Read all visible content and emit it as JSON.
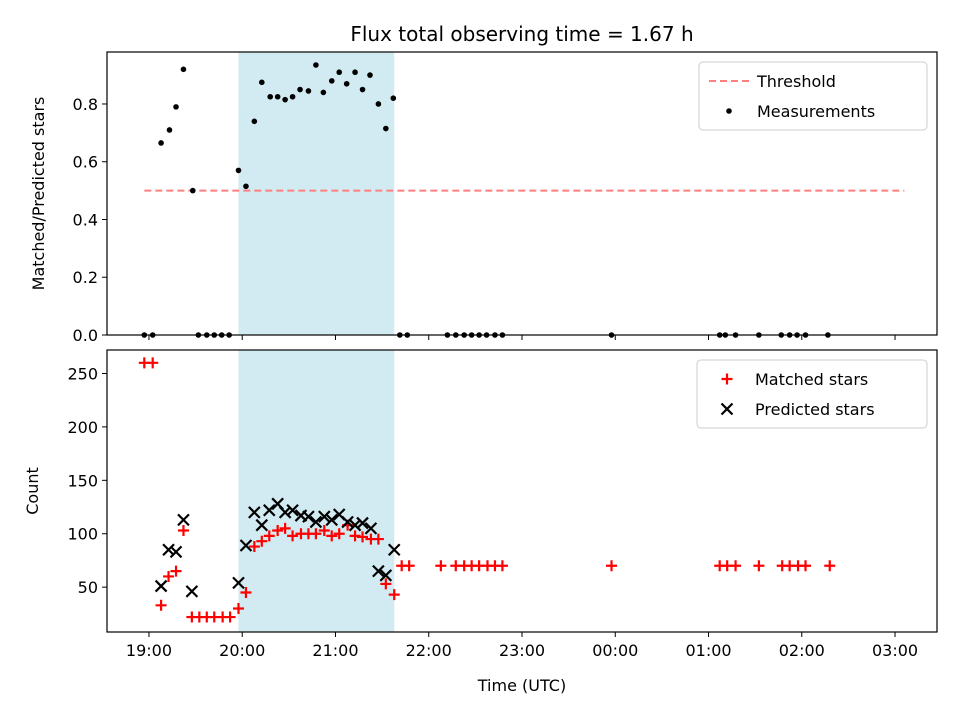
{
  "figure_title": "Flux total observing time = 1.67 h",
  "colors": {
    "shade": "#add8e6",
    "threshold": "#ff7f7f",
    "measurement": "#000000",
    "matched": "#ff0000",
    "predicted": "#000000"
  },
  "chart_data": [
    {
      "type": "scatter",
      "panel": "top",
      "title": "Flux total observing time = 1.67 h",
      "xlabel": "",
      "ylabel": "Matched/Predicted stars",
      "x_unit": "hours after 19:00 UTC",
      "xlim": [
        -0.45,
        8.45
      ],
      "ylim": [
        0,
        0.98
      ],
      "yticks": [
        0.0,
        0.2,
        0.4,
        0.6,
        0.8
      ],
      "ytick_labels": [
        "0.0",
        "0.2",
        "0.4",
        "0.6",
        "0.8"
      ],
      "xticks": [
        0,
        1,
        2,
        3,
        4,
        5,
        6,
        7,
        8
      ],
      "legend_position": "top-right",
      "shaded_interval": [
        0.96,
        2.63
      ],
      "threshold": {
        "name": "Threshold",
        "y": 0.5,
        "x_range": [
          -0.05,
          8.1
        ],
        "style": "dashed"
      },
      "series": [
        {
          "name": "Measurements",
          "marker": "dot",
          "x": [
            -0.05,
            0.04,
            0.13,
            0.22,
            0.29,
            0.37,
            0.47,
            0.53,
            0.62,
            0.7,
            0.78,
            0.86,
            0.96,
            1.04,
            1.13,
            1.21,
            1.3,
            1.38,
            1.46,
            1.54,
            1.62,
            1.71,
            1.79,
            1.87,
            1.96,
            2.04,
            2.12,
            2.21,
            2.29,
            2.37,
            2.46,
            2.54,
            2.62,
            2.69,
            2.77,
            3.2,
            3.29,
            3.38,
            3.46,
            3.54,
            3.62,
            3.71,
            3.79,
            4.96,
            6.12,
            6.18,
            6.29,
            6.54,
            6.78,
            6.87,
            6.95,
            7.04,
            7.28
          ],
          "y": [
            0,
            0,
            0.665,
            0.71,
            0.79,
            0.92,
            0.5,
            0,
            0,
            0,
            0,
            0,
            0.57,
            0.515,
            0.74,
            0.875,
            0.825,
            0.825,
            0.815,
            0.825,
            0.85,
            0.845,
            0.935,
            0.84,
            0.88,
            0.91,
            0.87,
            0.91,
            0.85,
            0.9,
            0.8,
            0.715,
            0.82,
            0,
            0,
            0,
            0,
            0,
            0,
            0,
            0,
            0,
            0,
            0,
            0,
            0,
            0,
            0,
            0,
            0,
            0,
            0,
            0
          ]
        }
      ]
    },
    {
      "type": "scatter",
      "panel": "bottom",
      "xlabel": "Time (UTC)",
      "ylabel": "Count",
      "x_unit": "hours after 19:00 UTC",
      "xlim": [
        -0.45,
        8.45
      ],
      "ylim": [
        8,
        272
      ],
      "yticks": [
        50,
        100,
        150,
        200,
        250
      ],
      "ytick_labels": [
        "50",
        "100",
        "150",
        "200",
        "250"
      ],
      "xticks": [
        0,
        1,
        2,
        3,
        4,
        5,
        6,
        7,
        8
      ],
      "xtick_labels": [
        "19:00",
        "20:00",
        "21:00",
        "22:00",
        "23:00",
        "00:00",
        "01:00",
        "02:00",
        "03:00"
      ],
      "legend_position": "top-right",
      "shaded_interval": [
        0.96,
        2.63
      ],
      "series": [
        {
          "name": "Matched stars",
          "marker": "plus",
          "x": [
            -0.05,
            0.04,
            0.13,
            0.21,
            0.29,
            0.37,
            0.46,
            0.54,
            0.62,
            0.7,
            0.79,
            0.87,
            0.96,
            1.04,
            1.13,
            1.21,
            1.29,
            1.38,
            1.46,
            1.54,
            1.63,
            1.71,
            1.79,
            1.88,
            1.96,
            2.04,
            2.13,
            2.21,
            2.29,
            2.38,
            2.46,
            2.54,
            2.63,
            2.71,
            2.79,
            3.13,
            3.29,
            3.38,
            3.46,
            3.54,
            3.63,
            3.71,
            3.79,
            4.96,
            6.12,
            6.2,
            6.29,
            6.54,
            6.79,
            6.87,
            6.96,
            7.04,
            7.3
          ],
          "y": [
            260,
            260,
            33,
            60,
            65,
            103,
            22,
            22,
            22,
            22,
            22,
            22,
            30,
            45,
            88,
            93,
            98,
            103,
            105,
            98,
            100,
            100,
            100,
            103,
            98,
            100,
            108,
            98,
            97,
            95,
            95,
            53,
            43,
            70,
            70,
            70,
            70,
            70,
            70,
            70,
            70,
            70,
            70,
            70,
            70,
            70,
            70,
            70,
            70,
            70,
            70,
            70,
            70
          ]
        },
        {
          "name": "Predicted stars",
          "marker": "x",
          "x": [
            0.13,
            0.21,
            0.29,
            0.37,
            0.46,
            0.96,
            1.04,
            1.13,
            1.21,
            1.29,
            1.38,
            1.46,
            1.54,
            1.63,
            1.71,
            1.79,
            1.88,
            1.96,
            2.04,
            2.13,
            2.21,
            2.29,
            2.38,
            2.46,
            2.54,
            2.63
          ],
          "y": [
            51,
            85,
            83,
            113,
            46,
            54,
            89,
            120,
            108,
            122,
            128,
            120,
            122,
            117,
            116,
            111,
            116,
            113,
            118,
            111,
            108,
            110,
            105,
            65,
            61,
            85
          ]
        }
      ]
    }
  ]
}
